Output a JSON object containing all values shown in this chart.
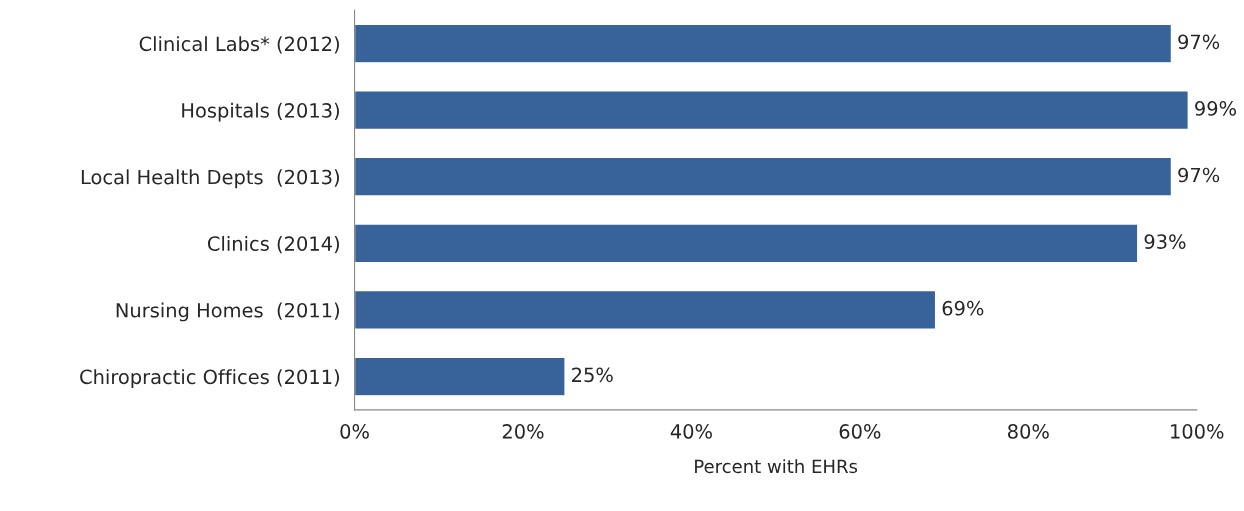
{
  "chart_data": {
    "type": "bar",
    "orientation": "horizontal",
    "xlabel": "Percent with EHRs",
    "categories": [
      "Clinical Labs* (2012)",
      "Hospitals (2013)",
      "Local Health Depts  (2013)",
      "Clinics (2014)",
      "Nursing Homes  (2011)",
      "Chiropractic Offices (2011)"
    ],
    "values": [
      97,
      99,
      97,
      93,
      69,
      25
    ],
    "value_labels": [
      "97%",
      "99%",
      "97%",
      "93%",
      "69%",
      "25%"
    ],
    "color": "#37629a",
    "xlim": [
      0,
      100
    ],
    "xticks": [
      {
        "value": 0,
        "label": "0%"
      },
      {
        "value": 20,
        "label": "20%"
      },
      {
        "value": 40,
        "label": "40%"
      },
      {
        "value": 60,
        "label": "60%"
      },
      {
        "value": 80,
        "label": "80%"
      },
      {
        "value": 100,
        "label": "100%"
      }
    ],
    "grid": false,
    "legend": false
  }
}
